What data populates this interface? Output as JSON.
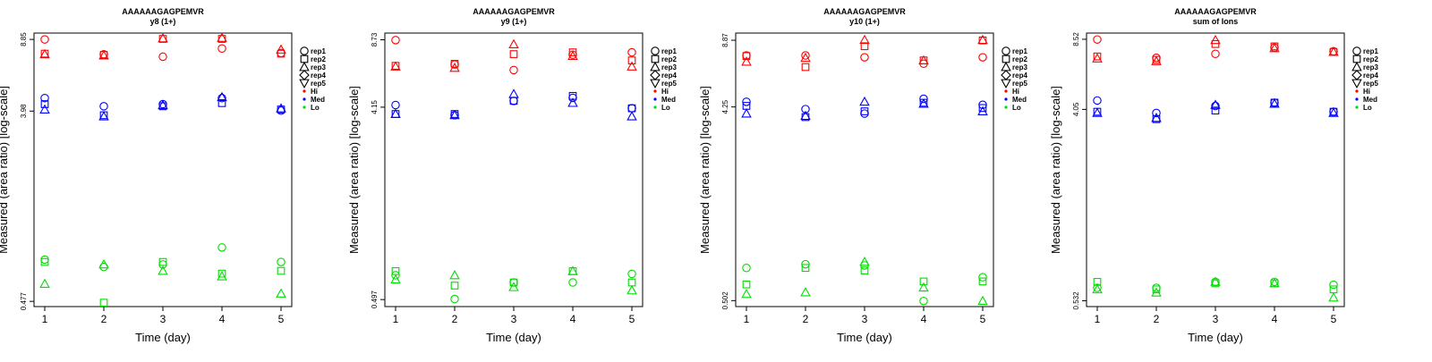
{
  "figure": {
    "shared": {
      "xlabel": "Time (day)",
      "ylabel": "Measured (area ratio) [log-scale]",
      "x_ticks": [
        "1",
        "2",
        "3",
        "4",
        "5"
      ]
    },
    "legend": {
      "shapes": [
        {
          "label": "rep1",
          "marker": "circle"
        },
        {
          "label": "rep2",
          "marker": "square"
        },
        {
          "label": "rep3",
          "marker": "triangle-up"
        },
        {
          "label": "rep4",
          "marker": "diamond"
        },
        {
          "label": "rep5",
          "marker": "triangle-down"
        }
      ],
      "levels": [
        {
          "label": "Hi",
          "color": "#ff0000"
        },
        {
          "label": "Med",
          "color": "#0000ff"
        },
        {
          "label": "Lo",
          "color": "#00dd00"
        }
      ]
    }
  },
  "chart_data": [
    {
      "type": "scatter",
      "title": "AAAAAAGAGPEMVR",
      "subtitle": "y8 (1+)",
      "xlabel": "Time (day)",
      "ylabel": "Measured (area ratio) [log-scale]",
      "y_scale": "log",
      "y_ticks": [
        "8.85",
        "3.98",
        "0.477"
      ],
      "ylim": [
        0.45,
        9.5
      ],
      "x": [
        1,
        2,
        3,
        4,
        5
      ],
      "series": [
        {
          "level": "Hi",
          "rep": "rep1",
          "values": [
            8.85,
            7.5,
            7.3,
            8.0,
            7.6
          ]
        },
        {
          "level": "Hi",
          "rep": "rep2",
          "values": [
            7.55,
            7.45,
            8.9,
            8.9,
            7.55
          ]
        },
        {
          "level": "Hi",
          "rep": "rep3",
          "values": [
            7.5,
            7.4,
            8.95,
            9.0,
            7.9
          ]
        },
        {
          "level": "Med",
          "rep": "rep1",
          "values": [
            4.6,
            4.2,
            4.3,
            4.6,
            4.0
          ]
        },
        {
          "level": "Med",
          "rep": "rep2",
          "values": [
            4.3,
            3.8,
            4.2,
            4.35,
            4.05
          ]
        },
        {
          "level": "Med",
          "rep": "rep3",
          "values": [
            4.05,
            3.75,
            4.25,
            4.65,
            4.1
          ]
        },
        {
          "level": "Lo",
          "rep": "rep1",
          "values": [
            0.76,
            0.7,
            0.72,
            0.87,
            0.74
          ]
        },
        {
          "level": "Lo",
          "rep": "rep2",
          "values": [
            0.74,
            0.47,
            0.74,
            0.65,
            0.67
          ]
        },
        {
          "level": "Lo",
          "rep": "rep3",
          "values": [
            0.58,
            0.72,
            0.67,
            0.63,
            0.52
          ]
        }
      ]
    },
    {
      "type": "scatter",
      "title": "AAAAAAGAGPEMVR",
      "subtitle": "y9 (1+)",
      "xlabel": "Time (day)",
      "ylabel": "Measured (area ratio) [log-scale]",
      "y_scale": "log",
      "y_ticks": [
        "8.73",
        "4.15",
        "0.497"
      ],
      "ylim": [
        0.46,
        9.4
      ],
      "x": [
        1,
        2,
        3,
        4,
        5
      ],
      "series": [
        {
          "level": "Hi",
          "rep": "rep1",
          "values": [
            8.7,
            6.65,
            6.25,
            7.4,
            7.6
          ]
        },
        {
          "level": "Hi",
          "rep": "rep2",
          "values": [
            6.55,
            6.7,
            7.45,
            7.6,
            6.95
          ]
        },
        {
          "level": "Hi",
          "rep": "rep3",
          "values": [
            6.5,
            6.4,
            8.3,
            7.3,
            6.5
          ]
        },
        {
          "level": "Med",
          "rep": "rep1",
          "values": [
            4.25,
            3.8,
            4.45,
            4.6,
            4.1
          ]
        },
        {
          "level": "Med",
          "rep": "rep2",
          "values": [
            3.85,
            3.85,
            4.45,
            4.7,
            4.1
          ]
        },
        {
          "level": "Med",
          "rep": "rep3",
          "values": [
            3.85,
            3.8,
            4.8,
            4.35,
            3.75
          ]
        },
        {
          "level": "Lo",
          "rep": "rep1",
          "values": [
            0.65,
            0.5,
            0.6,
            0.6,
            0.66
          ]
        },
        {
          "level": "Lo",
          "rep": "rep2",
          "values": [
            0.68,
            0.58,
            0.6,
            0.68,
            0.6
          ]
        },
        {
          "level": "Lo",
          "rep": "rep3",
          "values": [
            0.62,
            0.65,
            0.57,
            0.68,
            0.55
          ]
        }
      ]
    },
    {
      "type": "scatter",
      "title": "AAAAAAGAGPEMVR",
      "subtitle": "y10 (1+)",
      "xlabel": "Time (day)",
      "ylabel": "Measured (area ratio) [log-scale]",
      "y_scale": "log",
      "y_ticks": [
        "8.87",
        "4.25",
        "0.502"
      ],
      "ylim": [
        0.47,
        9.6
      ],
      "x": [
        1,
        2,
        3,
        4,
        5
      ],
      "series": [
        {
          "level": "Hi",
          "rep": "rep1",
          "values": [
            7.5,
            7.5,
            7.35,
            6.85,
            7.35
          ]
        },
        {
          "level": "Hi",
          "rep": "rep2",
          "values": [
            7.45,
            6.6,
            8.3,
            7.1,
            8.85
          ]
        },
        {
          "level": "Hi",
          "rep": "rep3",
          "values": [
            7.0,
            7.3,
            8.9,
            7.1,
            8.9
          ]
        },
        {
          "level": "Med",
          "rep": "rep1",
          "values": [
            4.5,
            4.15,
            3.95,
            4.65,
            4.35
          ]
        },
        {
          "level": "Med",
          "rep": "rep2",
          "values": [
            4.3,
            3.8,
            4.05,
            4.45,
            4.2
          ]
        },
        {
          "level": "Med",
          "rep": "rep3",
          "values": [
            3.95,
            3.85,
            4.5,
            4.4,
            4.05
          ]
        },
        {
          "level": "Lo",
          "rep": "rep1",
          "values": [
            0.72,
            0.75,
            0.74,
            0.5,
            0.65
          ]
        },
        {
          "level": "Lo",
          "rep": "rep2",
          "values": [
            0.6,
            0.72,
            0.7,
            0.62,
            0.62
          ]
        },
        {
          "level": "Lo",
          "rep": "rep3",
          "values": [
            0.54,
            0.55,
            0.77,
            0.58,
            0.5
          ]
        }
      ]
    },
    {
      "type": "scatter",
      "title": "AAAAAAGAGPEMVR",
      "subtitle": "sum of Ions",
      "xlabel": "Time (day)",
      "ylabel": "Measured (area ratio) [log-scale]",
      "y_scale": "log",
      "y_ticks": [
        "8.52",
        "4.05",
        "0.532"
      ],
      "ylim": [
        0.5,
        9.1
      ],
      "x": [
        1,
        2,
        3,
        4,
        5
      ],
      "series": [
        {
          "level": "Hi",
          "rep": "rep1",
          "values": [
            8.5,
            7.0,
            7.3,
            7.8,
            7.5
          ]
        },
        {
          "level": "Hi",
          "rep": "rep2",
          "values": [
            7.1,
            6.85,
            8.1,
            7.9,
            7.45
          ]
        },
        {
          "level": "Hi",
          "rep": "rep3",
          "values": [
            6.95,
            6.75,
            8.45,
            7.75,
            7.45
          ]
        },
        {
          "level": "Med",
          "rep": "rep1",
          "values": [
            4.45,
            3.9,
            4.2,
            4.35,
            3.95
          ]
        },
        {
          "level": "Med",
          "rep": "rep2",
          "values": [
            3.95,
            3.65,
            4.0,
            4.35,
            3.95
          ]
        },
        {
          "level": "Med",
          "rep": "rep3",
          "values": [
            3.9,
            3.7,
            4.25,
            4.3,
            3.9
          ]
        },
        {
          "level": "Lo",
          "rep": "rep1",
          "values": [
            0.61,
            0.61,
            0.65,
            0.65,
            0.63
          ]
        },
        {
          "level": "Lo",
          "rep": "rep2",
          "values": [
            0.65,
            0.6,
            0.64,
            0.64,
            0.6
          ]
        },
        {
          "level": "Lo",
          "rep": "rep3",
          "values": [
            0.6,
            0.58,
            0.65,
            0.64,
            0.55
          ]
        }
      ]
    }
  ]
}
